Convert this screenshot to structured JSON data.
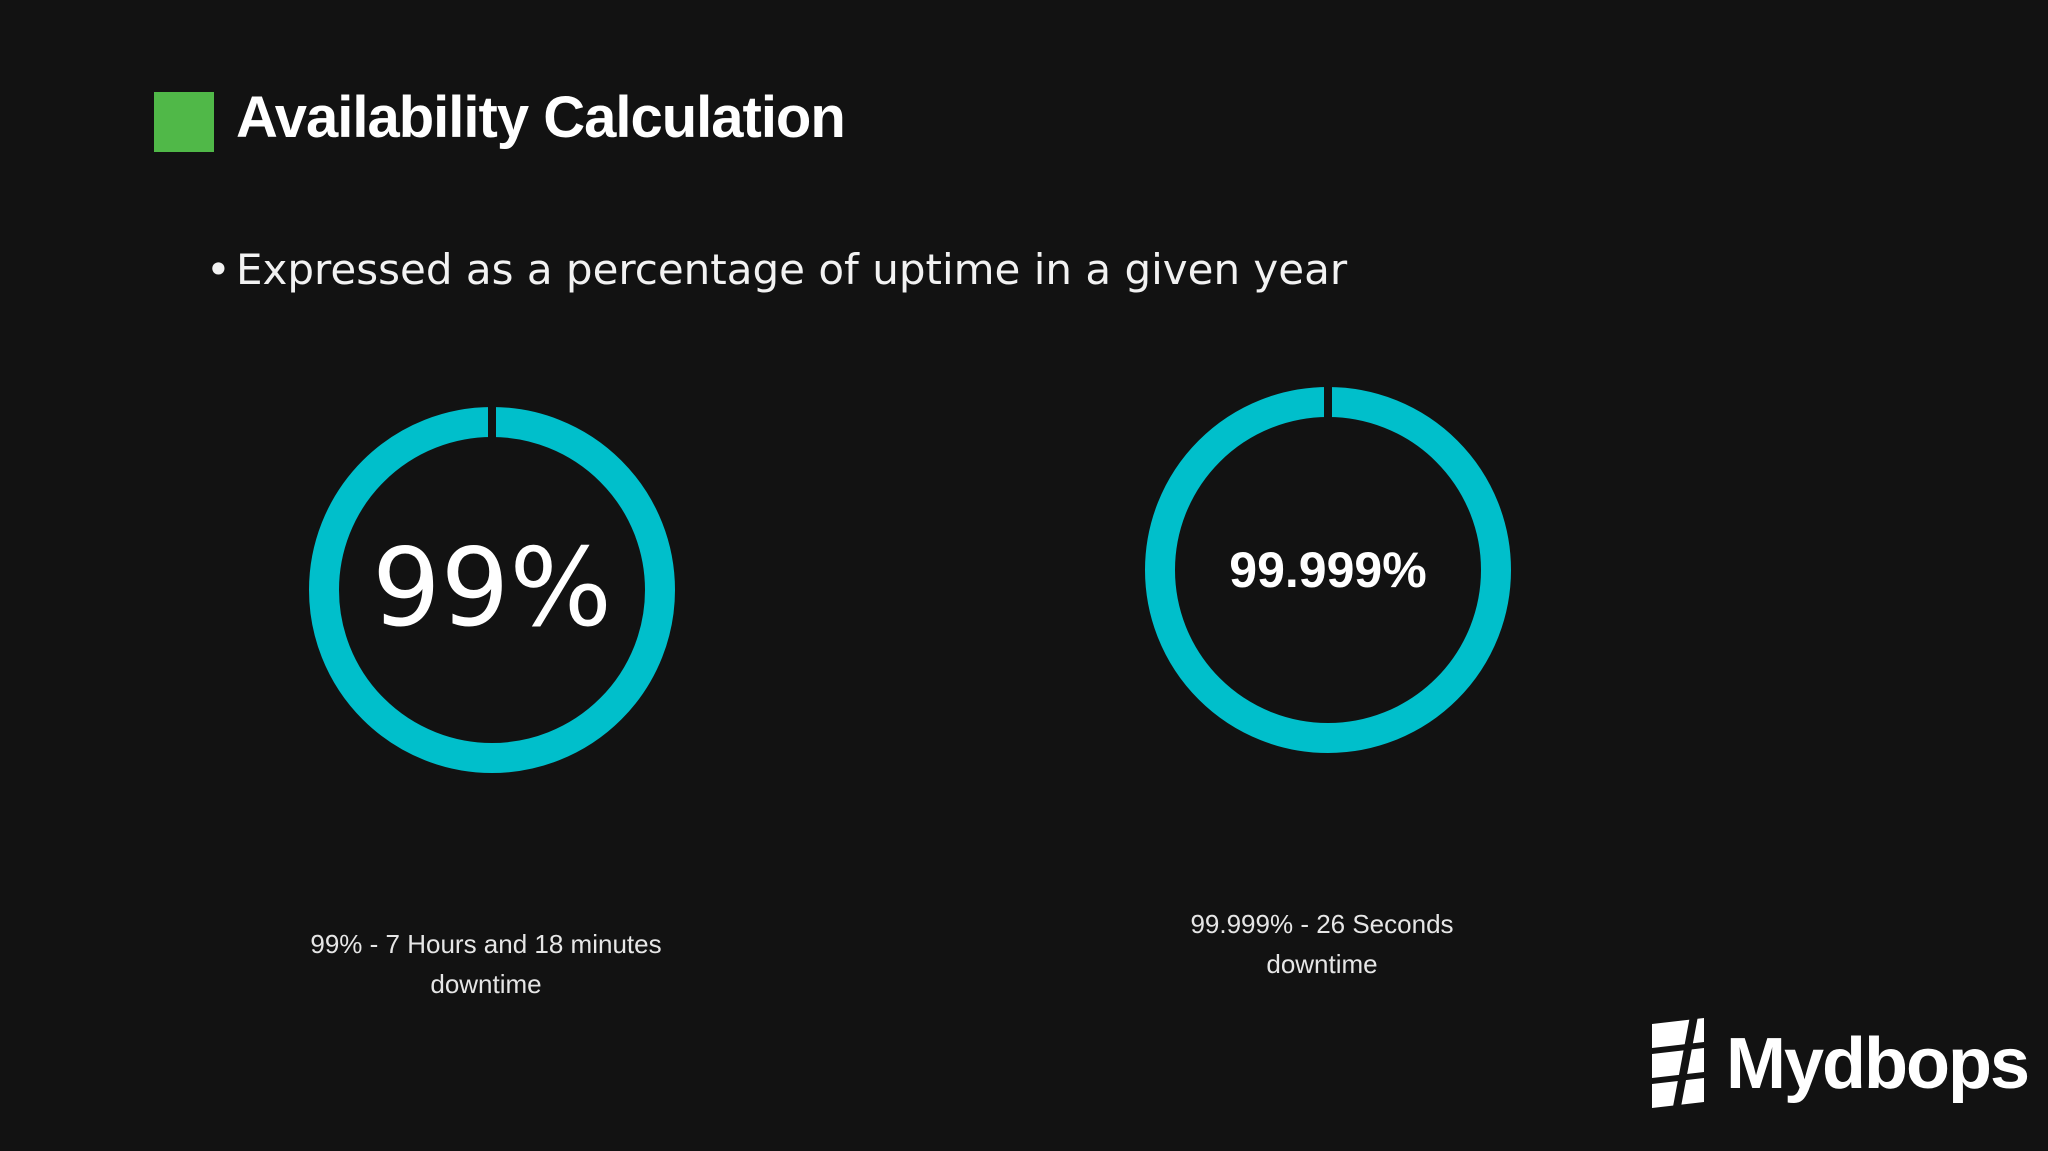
{
  "slide": {
    "title": "Availability Calculation",
    "bullet_symbol": "•",
    "bullet_text": "Expressed as a percentage of uptime in a given year"
  },
  "gauges": [
    {
      "value_label": "99%",
      "availability_percent": 99,
      "caption_line1": "99% - 7 Hours and 18 minutes",
      "caption_line2": "downtime"
    },
    {
      "value_label": "99.999%",
      "availability_percent": 99.999,
      "caption_line1": "99.999% - 26 Seconds",
      "caption_line2": "downtime"
    }
  ],
  "logo": {
    "text": "Mydbops"
  },
  "colors": {
    "background": "#121212",
    "accent_square": "#50b848",
    "ring": "#00bfcb",
    "text": "#ffffff"
  }
}
